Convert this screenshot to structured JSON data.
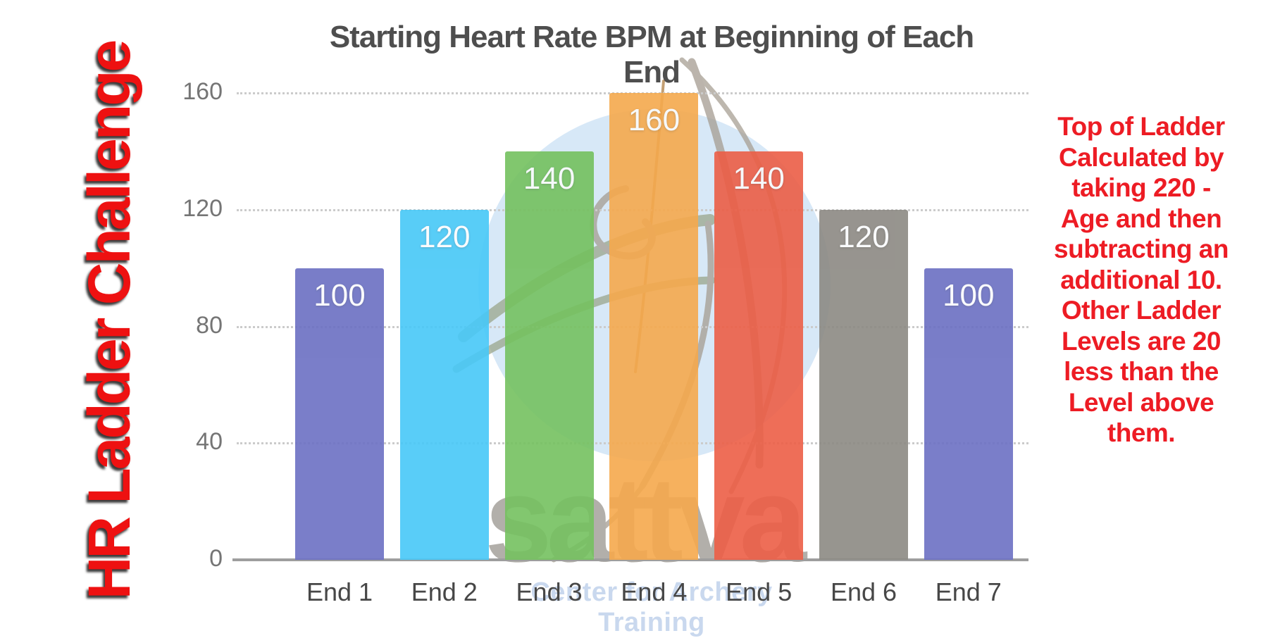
{
  "left_banner": {
    "text": "HR Ladder Challenge",
    "color": "#EE1111"
  },
  "right_note": {
    "color": "#ED1C24",
    "lines": [
      "Top of Ladder",
      "Calculated by",
      "taking 220 -",
      "Age and then",
      "subtracting an",
      "additional 10.",
      "Other Ladder",
      "Levels are 20",
      "less than the",
      "Level above",
      "them."
    ]
  },
  "chart_data": {
    "type": "bar",
    "title": "Starting Heart Rate BPM at Beginning of Each End",
    "categories": [
      "End 1",
      "End 2",
      "End 3",
      "End 4",
      "End 5",
      "End 6",
      "End 7"
    ],
    "values": [
      100,
      120,
      140,
      160,
      140,
      120,
      100
    ],
    "bar_colors": [
      "#6B70C3",
      "#47C8F7",
      "#74C15F",
      "#F5A94D",
      "#EC5E46",
      "#8C8983",
      "#6B70C3"
    ],
    "value_label_color": "#FAFBFD",
    "value_label_position": "inside-top",
    "xlabel": "",
    "ylabel": "",
    "ylim": [
      0,
      160
    ],
    "yticks": [
      0,
      40,
      80,
      120,
      160
    ],
    "grid": "horizontal-dotted",
    "gridline_color": "#CBCBCB",
    "axis_line_color": "#9E9E9E",
    "title_color": "#4E4E4E",
    "tick_label_color": "#757575",
    "category_label_color": "#474747",
    "legend": "none"
  },
  "watermark": {
    "wordmark": "sattva",
    "tagline": "Center for Archery Training",
    "circle_color": "#D7E8F7",
    "wordmark_color": "#B2AFAA",
    "tagline_color": "#C9D8EE"
  }
}
